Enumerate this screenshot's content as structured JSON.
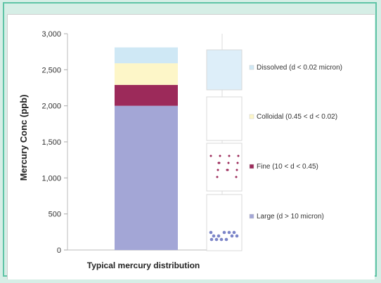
{
  "chart_data": {
    "type": "bar",
    "stacked": true,
    "title": "",
    "xlabel": "Typical mercury distribution",
    "ylabel": "Mercury Conc (ppb)",
    "ylim": [
      0,
      3000
    ],
    "yticks": [
      {
        "value": 0,
        "label": "0"
      },
      {
        "value": 500,
        "label": "500"
      },
      {
        "value": 1000,
        "label": "1,000"
      },
      {
        "value": 1500,
        "label": "1,500"
      },
      {
        "value": 2000,
        "label": "2,000"
      },
      {
        "value": 2500,
        "label": "2,500"
      },
      {
        "value": 3000,
        "label": "3,000"
      }
    ],
    "categories": [
      "Typical mercury distribution"
    ],
    "series": [
      {
        "name": "Large (d > 10 micron)",
        "values": [
          2000
        ],
        "color": "#a3a6d6"
      },
      {
        "name": "Fine (10 < d < 0.45)",
        "values": [
          290
        ],
        "color": "#9c2a5a"
      },
      {
        "name": "Colloidal (0.45 < d < 0.02)",
        "values": [
          300
        ],
        "color": "#fdf6c8"
      },
      {
        "name": "Dissolved (d < 0.02 micron)",
        "values": [
          220
        ],
        "color": "#cfe8f5"
      }
    ],
    "legend": "right",
    "grid": false
  }
}
